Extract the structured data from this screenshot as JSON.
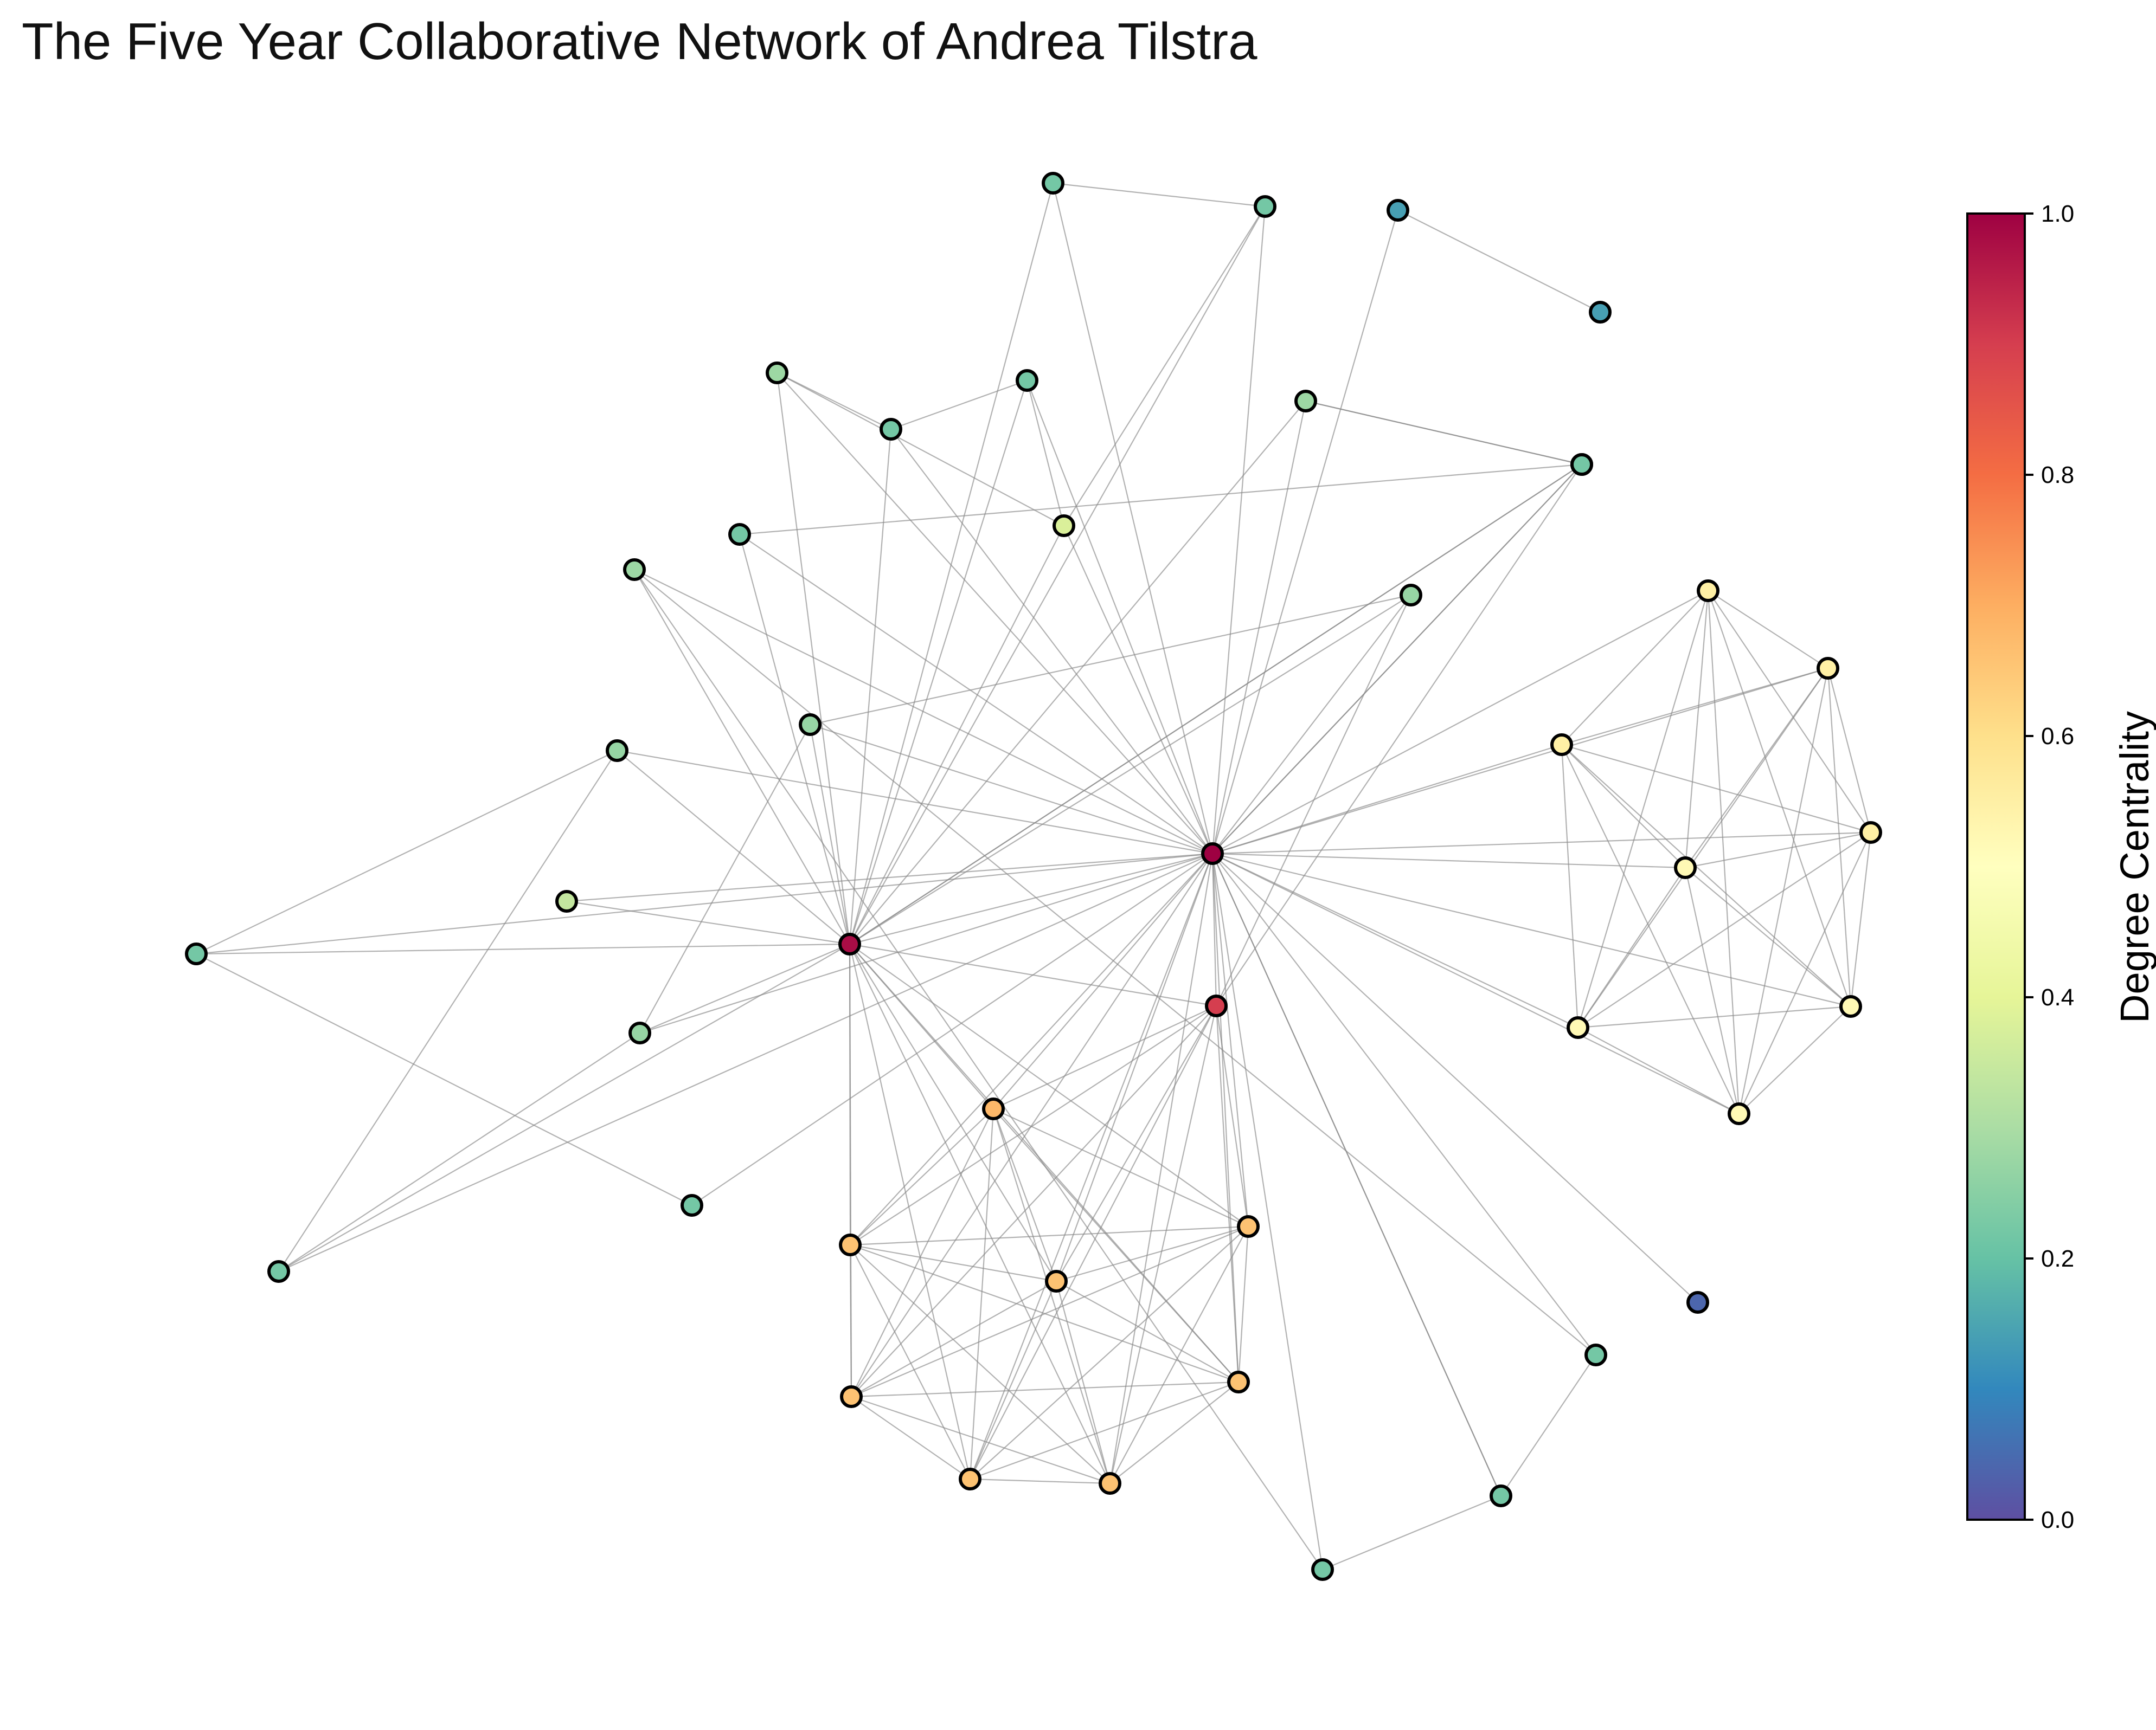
{
  "title": "The Five Year Collaborative Network of Andrea Tilstra",
  "colorbar": {
    "label": "Degree Centrality",
    "min": 0.0,
    "max": 1.0,
    "ticks": [
      "0.0",
      "0.2",
      "0.4",
      "0.6",
      "0.8",
      "1.0"
    ],
    "colormap": "Spectral_r",
    "stops": [
      "#5e4fa2",
      "#3288bd",
      "#66c2a5",
      "#abdda4",
      "#e6f598",
      "#ffffbf",
      "#fee08b",
      "#fdae61",
      "#f46d43",
      "#d53e4f",
      "#9e0142"
    ]
  },
  "nodes": [
    {
      "id": "A",
      "degree": 1.0
    },
    {
      "id": "B",
      "degree": 0.98
    },
    {
      "id": "C",
      "degree": 0.9
    },
    {
      "id": "O1",
      "degree": 0.68
    },
    {
      "id": "O2",
      "degree": 0.66
    },
    {
      "id": "O3",
      "degree": 0.66
    },
    {
      "id": "O4",
      "degree": 0.66
    },
    {
      "id": "O5",
      "degree": 0.66
    },
    {
      "id": "O6",
      "degree": 0.66
    },
    {
      "id": "O7",
      "degree": 0.66
    },
    {
      "id": "O8",
      "degree": 0.66
    },
    {
      "id": "Y1",
      "degree": 0.55
    },
    {
      "id": "Y2",
      "degree": 0.55
    },
    {
      "id": "Y3",
      "degree": 0.55
    },
    {
      "id": "Y4",
      "degree": 0.55
    },
    {
      "id": "Y5",
      "degree": 0.52
    },
    {
      "id": "Y6",
      "degree": 0.52
    },
    {
      "id": "Y7",
      "degree": 0.52
    },
    {
      "id": "Y8",
      "degree": 0.52
    },
    {
      "id": "G1",
      "degree": 0.38
    },
    {
      "id": "G2",
      "degree": 0.34
    },
    {
      "id": "L1",
      "degree": 0.28
    },
    {
      "id": "L2",
      "degree": 0.28
    },
    {
      "id": "L3",
      "degree": 0.28
    },
    {
      "id": "L4",
      "degree": 0.28
    },
    {
      "id": "L5",
      "degree": 0.27
    },
    {
      "id": "L6",
      "degree": 0.27
    },
    {
      "id": "L7",
      "degree": 0.27
    },
    {
      "id": "L8",
      "degree": 0.27
    },
    {
      "id": "T1",
      "degree": 0.22
    },
    {
      "id": "T2",
      "degree": 0.22
    },
    {
      "id": "T3",
      "degree": 0.22
    },
    {
      "id": "T4",
      "degree": 0.22
    },
    {
      "id": "T5",
      "degree": 0.22
    },
    {
      "id": "T6",
      "degree": 0.22
    },
    {
      "id": "T7",
      "degree": 0.22
    },
    {
      "id": "T8",
      "degree": 0.22
    },
    {
      "id": "T9",
      "degree": 0.22
    },
    {
      "id": "T10",
      "degree": 0.22
    },
    {
      "id": "T11",
      "degree": 0.22
    },
    {
      "id": "T12",
      "degree": 0.22
    },
    {
      "id": "D1",
      "degree": 0.14
    },
    {
      "id": "D2",
      "degree": 0.14
    },
    {
      "id": "D3",
      "degree": 0.04
    }
  ],
  "edges": [
    [
      "A",
      "B"
    ],
    [
      "A",
      "C"
    ],
    [
      "A",
      "O1"
    ],
    [
      "A",
      "O2"
    ],
    [
      "A",
      "O3"
    ],
    [
      "A",
      "O4"
    ],
    [
      "A",
      "O5"
    ],
    [
      "A",
      "O6"
    ],
    [
      "A",
      "O7"
    ],
    [
      "A",
      "O8"
    ],
    [
      "A",
      "Y1"
    ],
    [
      "A",
      "Y2"
    ],
    [
      "A",
      "Y3"
    ],
    [
      "A",
      "Y4"
    ],
    [
      "A",
      "Y5"
    ],
    [
      "A",
      "Y6"
    ],
    [
      "A",
      "Y7"
    ],
    [
      "A",
      "Y8"
    ],
    [
      "A",
      "G1"
    ],
    [
      "A",
      "G2"
    ],
    [
      "A",
      "L1"
    ],
    [
      "A",
      "L2"
    ],
    [
      "A",
      "L3"
    ],
    [
      "A",
      "L4"
    ],
    [
      "A",
      "L5"
    ],
    [
      "A",
      "L6"
    ],
    [
      "A",
      "L7"
    ],
    [
      "A",
      "L8"
    ],
    [
      "A",
      "T1"
    ],
    [
      "A",
      "T2"
    ],
    [
      "A",
      "T3"
    ],
    [
      "A",
      "T4"
    ],
    [
      "A",
      "T5"
    ],
    [
      "A",
      "T6"
    ],
    [
      "A",
      "T7"
    ],
    [
      "A",
      "T8"
    ],
    [
      "A",
      "T9"
    ],
    [
      "A",
      "T10"
    ],
    [
      "A",
      "T11"
    ],
    [
      "A",
      "T12"
    ],
    [
      "A",
      "D1"
    ],
    [
      "A",
      "D3"
    ],
    [
      "B",
      "C"
    ],
    [
      "B",
      "O1"
    ],
    [
      "B",
      "O2"
    ],
    [
      "B",
      "O3"
    ],
    [
      "B",
      "O4"
    ],
    [
      "B",
      "O5"
    ],
    [
      "B",
      "O6"
    ],
    [
      "B",
      "O7"
    ],
    [
      "B",
      "O8"
    ],
    [
      "B",
      "G1"
    ],
    [
      "B",
      "G2"
    ],
    [
      "B",
      "L1"
    ],
    [
      "B",
      "L2"
    ],
    [
      "B",
      "L3"
    ],
    [
      "B",
      "L4"
    ],
    [
      "B",
      "L5"
    ],
    [
      "B",
      "L6"
    ],
    [
      "B",
      "L7"
    ],
    [
      "B",
      "L8"
    ],
    [
      "B",
      "T1"
    ],
    [
      "B",
      "T2"
    ],
    [
      "B",
      "T3"
    ],
    [
      "B",
      "T4"
    ],
    [
      "B",
      "T5"
    ],
    [
      "B",
      "T6"
    ],
    [
      "B",
      "T7"
    ],
    [
      "B",
      "T8"
    ],
    [
      "C",
      "O1"
    ],
    [
      "C",
      "O2"
    ],
    [
      "C",
      "O3"
    ],
    [
      "C",
      "O4"
    ],
    [
      "C",
      "O5"
    ],
    [
      "C",
      "O6"
    ],
    [
      "C",
      "O7"
    ],
    [
      "C",
      "O8"
    ],
    [
      "C",
      "L3"
    ],
    [
      "C",
      "L7"
    ],
    [
      "O1",
      "O2"
    ],
    [
      "O1",
      "O3"
    ],
    [
      "O1",
      "O4"
    ],
    [
      "O1",
      "O5"
    ],
    [
      "O1",
      "O6"
    ],
    [
      "O1",
      "O7"
    ],
    [
      "O1",
      "O8"
    ],
    [
      "O2",
      "O3"
    ],
    [
      "O2",
      "O4"
    ],
    [
      "O2",
      "O5"
    ],
    [
      "O2",
      "O6"
    ],
    [
      "O2",
      "O7"
    ],
    [
      "O2",
      "O8"
    ],
    [
      "O3",
      "O4"
    ],
    [
      "O3",
      "O5"
    ],
    [
      "O3",
      "O6"
    ],
    [
      "O3",
      "O7"
    ],
    [
      "O3",
      "O8"
    ],
    [
      "O4",
      "O5"
    ],
    [
      "O4",
      "O6"
    ],
    [
      "O4",
      "O7"
    ],
    [
      "O4",
      "O8"
    ],
    [
      "O5",
      "O6"
    ],
    [
      "O5",
      "O7"
    ],
    [
      "O5",
      "O8"
    ],
    [
      "O6",
      "O7"
    ],
    [
      "O6",
      "O8"
    ],
    [
      "O7",
      "O8"
    ],
    [
      "Y1",
      "Y2"
    ],
    [
      "Y1",
      "Y3"
    ],
    [
      "Y1",
      "Y4"
    ],
    [
      "Y1",
      "Y5"
    ],
    [
      "Y1",
      "Y6"
    ],
    [
      "Y1",
      "Y7"
    ],
    [
      "Y1",
      "Y8"
    ],
    [
      "Y2",
      "Y3"
    ],
    [
      "Y2",
      "Y4"
    ],
    [
      "Y2",
      "Y5"
    ],
    [
      "Y2",
      "Y6"
    ],
    [
      "Y2",
      "Y7"
    ],
    [
      "Y2",
      "Y8"
    ],
    [
      "Y3",
      "Y4"
    ],
    [
      "Y3",
      "Y5"
    ],
    [
      "Y3",
      "Y6"
    ],
    [
      "Y3",
      "Y7"
    ],
    [
      "Y3",
      "Y8"
    ],
    [
      "Y4",
      "Y5"
    ],
    [
      "Y4",
      "Y6"
    ],
    [
      "Y4",
      "Y7"
    ],
    [
      "Y4",
      "Y8"
    ],
    [
      "Y5",
      "Y6"
    ],
    [
      "Y5",
      "Y7"
    ],
    [
      "Y5",
      "Y8"
    ],
    [
      "Y6",
      "Y7"
    ],
    [
      "Y6",
      "Y8"
    ],
    [
      "Y7",
      "Y8"
    ],
    [
      "T1",
      "T2"
    ],
    [
      "G1",
      "T2"
    ],
    [
      "T4",
      "L1"
    ],
    [
      "T4",
      "T3"
    ],
    [
      "L1",
      "G1"
    ],
    [
      "T3",
      "G1"
    ],
    [
      "L2",
      "L3"
    ],
    [
      "L2",
      "T5"
    ],
    [
      "L3",
      "T6"
    ],
    [
      "L4",
      "T10"
    ],
    [
      "T9",
      "T7"
    ],
    [
      "T7",
      "L6"
    ],
    [
      "L5",
      "L8"
    ],
    [
      "L5",
      "L7"
    ],
    [
      "L6",
      "T8"
    ],
    [
      "T8",
      "L8"
    ],
    [
      "D1",
      "D2"
    ],
    [
      "T12",
      "T11"
    ],
    [
      "T12",
      "L4"
    ],
    [
      "T11",
      "T10"
    ],
    [
      "T11",
      "A"
    ]
  ]
}
